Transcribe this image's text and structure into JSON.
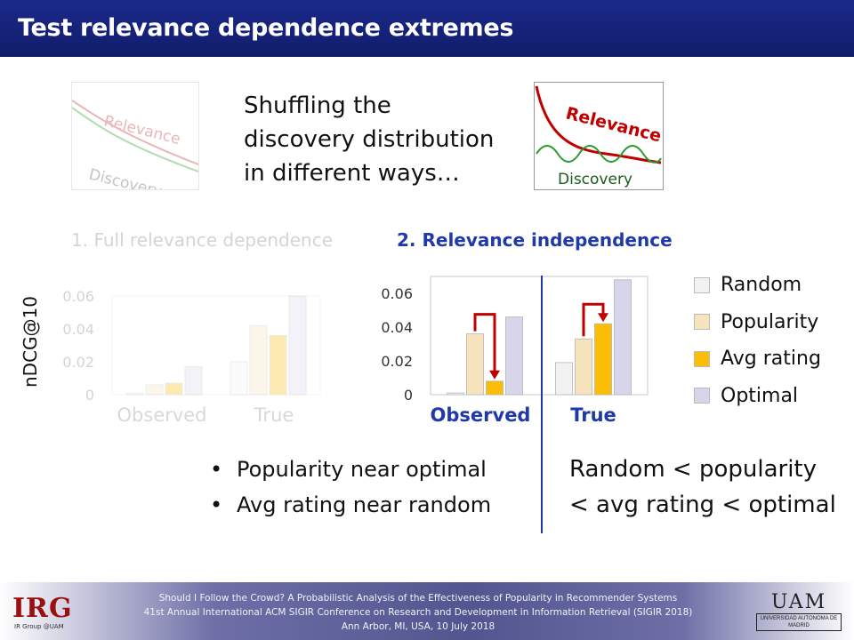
{
  "header": {
    "title": "Test relevance dependence extremes"
  },
  "intro": {
    "lines": [
      "Shuffling the",
      "discovery distribution",
      "in different ways…"
    ]
  },
  "illustrations": {
    "left": {
      "relevance_label": "Relevance",
      "discovery_label": "Discovery"
    },
    "right": {
      "relevance_label": "Relevance",
      "discovery_label": "Discovery"
    }
  },
  "sections": {
    "one": "1.  Full relevance dependence",
    "two": "2.  Relevance independence"
  },
  "y_axis_label": "nDCG@10",
  "chart_data": [
    {
      "type": "bar",
      "title": "1.  Full relevance dependence",
      "ylabel": "nDCG@10",
      "categories": [
        "Observed",
        "True"
      ],
      "ylim": [
        0,
        0.06
      ],
      "yticks": [
        0,
        0.02,
        0.04,
        0.06
      ],
      "ytick_labels": [
        "0",
        "0.02",
        "0.04",
        "0.06"
      ],
      "series": [
        {
          "name": "Random",
          "values": [
            0.001,
            0.02
          ],
          "color": "#f2f2f2"
        },
        {
          "name": "Popularity",
          "values": [
            0.006,
            0.042
          ],
          "color": "#f7e4bd"
        },
        {
          "name": "Avg rating",
          "values": [
            0.007,
            0.036
          ],
          "color": "#fbbd05"
        },
        {
          "name": "Optimal",
          "values": [
            0.017,
            0.06
          ],
          "color": "#d6d5ea"
        }
      ],
      "faded": true
    },
    {
      "type": "bar",
      "title": "2.  Relevance independence",
      "ylabel": "nDCG@10",
      "categories": [
        "Observed",
        "True"
      ],
      "ylim": [
        0,
        0.07
      ],
      "yticks": [
        0,
        0.02,
        0.04,
        0.06
      ],
      "ytick_labels": [
        "0",
        "0.02",
        "0.04",
        "0.06"
      ],
      "series": [
        {
          "name": "Random",
          "values": [
            0.001,
            0.019
          ],
          "color": "#f2f2f2"
        },
        {
          "name": "Popularity",
          "values": [
            0.036,
            0.033
          ],
          "color": "#f7e4bd"
        },
        {
          "name": "Avg rating",
          "values": [
            0.008,
            0.042
          ],
          "color": "#fbbd05"
        },
        {
          "name": "Optimal",
          "values": [
            0.046,
            0.068
          ],
          "color": "#d6d5ea"
        }
      ],
      "faded": false
    }
  ],
  "legend": {
    "items": [
      {
        "label": "Random",
        "color": "#f2f2f2"
      },
      {
        "label": "Popularity",
        "color": "#f7e4bd"
      },
      {
        "label": "Avg rating",
        "color": "#fbbd05"
      },
      {
        "label": "Optimal",
        "color": "#d6d5ea"
      }
    ]
  },
  "arrow_color": "#c00000",
  "bullets": [
    "Popularity near optimal",
    "Avg rating near random"
  ],
  "conclusion": {
    "line1": "Random < popularity",
    "line2": "< avg rating < optimal"
  },
  "footer": {
    "line1": "Should I Follow the Crowd? A Probabilistic Analysis of the Effectiveness of Popularity in Recommender Systems",
    "line2": "41st Annual International ACM SIGIR Conference on Research and Development in Information Retrieval (SIGIR 2018)",
    "line3": "Ann Arbor, MI, USA, 10 July 2018",
    "left_logo": "IRG",
    "left_logo_sub": "IR Group @UAM",
    "right_logo": "UAM",
    "right_logo_sub": "UNIVERSIDAD AUTONOMA DE MADRID"
  }
}
